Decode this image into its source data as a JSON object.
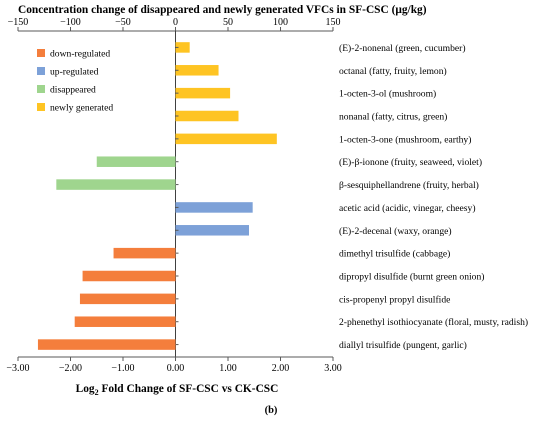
{
  "chart_data": {
    "type": "bar",
    "orientation": "horizontal",
    "title": "Concentration change of disappeared and newly generated VFCs in SF-CSC (μg/kg)",
    "xlabel_main": "Log",
    "xlabel_sub": "2",
    "xlabel_rest": " Fold Change of SF-CSC vs CK-CSC",
    "panel_label": "(b)",
    "bottom_axis": {
      "min": -3.0,
      "max": 3.0,
      "ticks": [
        "−3.00",
        "−2.00",
        "−1.00",
        "0.00",
        "1.00",
        "2.00",
        "3.00"
      ]
    },
    "top_axis": {
      "min": -150,
      "max": 150,
      "ticks": [
        "−150",
        "−100",
        "−50",
        "0",
        "50",
        "100",
        "150"
      ]
    },
    "categories": [
      "(E)-2-nonenal (green, cucumber)",
      "octanal (fatty, fruity, lemon)",
      "1-octen-3-ol (mushroom)",
      "nonanal (fatty, citrus, green)",
      "1-octen-3-one (mushroom, earthy)",
      "(E)-β-ionone (fruity, seaweed, violet)",
      "β-sesquiphellandrene (fruity, herbal)",
      "acetic acid (acidic, vinegar, cheesy)",
      "(E)-2-decenal (waxy, orange)",
      "dimethyl trisulfide (cabbage)",
      "dipropyl disulfide (burnt green onion)",
      "cis-propenyl propyl disulfide",
      "2-phenethyl isothiocyanate (floral, musty, radish)",
      "diallyl trisulfide (pungent, garlic)"
    ],
    "values_log2fc": [
      0.27,
      0.82,
      1.04,
      1.2,
      1.93,
      -1.5,
      -2.27,
      1.47,
      1.4,
      -1.18,
      -1.77,
      -1.82,
      -1.92,
      -2.62
    ],
    "groups": [
      "new",
      "new",
      "new",
      "new",
      "new",
      "disappeared",
      "disappeared",
      "up",
      "up",
      "down",
      "down",
      "down",
      "down",
      "down"
    ],
    "series": [
      {
        "key": "down",
        "name": "down-regulated",
        "color": "#F47E3C"
      },
      {
        "key": "up",
        "name": "up-regulated",
        "color": "#7DA1D8"
      },
      {
        "key": "disappeared",
        "name": "disappeared",
        "color": "#9FD58E"
      },
      {
        "key": "new",
        "name": "newly generated",
        "color": "#FEC423"
      }
    ],
    "legend_position": "top-left",
    "grid": false
  }
}
